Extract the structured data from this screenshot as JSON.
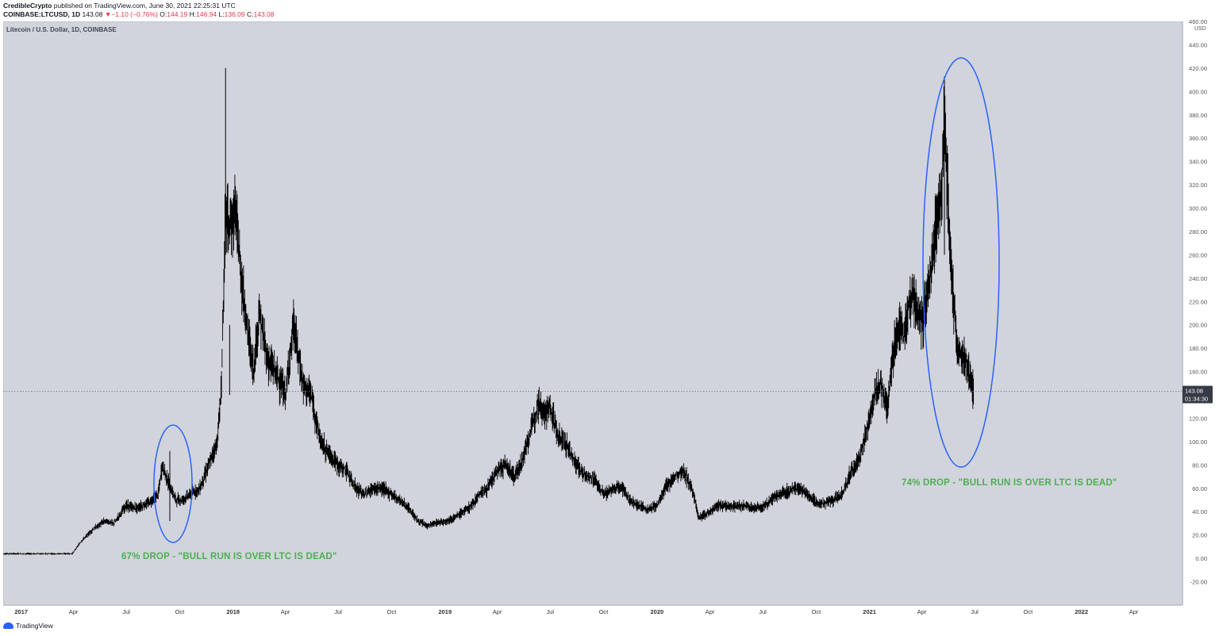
{
  "header": {
    "author": "CredibleCrypto",
    "published": "published on TradingView.com, June 30, 2021 22:25:31 UTC",
    "symbol": "COINBASE:LTCUSD, 1D",
    "last": "143.08",
    "change": "−1.10 (−0.76%)",
    "o_label": "O:",
    "o": "144.19",
    "h_label": "H:",
    "h": "146.94",
    "l_label": "L:",
    "l": "136.09",
    "c_label": "C:",
    "c": "143.08"
  },
  "chart_title": "Litecoin / U.S. Dollar, 1D, COINBASE",
  "axis_unit": "USD",
  "last_price_tag": {
    "price": "143.08",
    "countdown": "01:34:30"
  },
  "footer": {
    "brand": "TradingView"
  },
  "colors": {
    "background": "#d1d4dc",
    "candles": "#000000",
    "ellipse": "#2962ff",
    "annotation": "#4caf50",
    "down": "#e0394a"
  },
  "annotations": [
    {
      "text": "67% DROP - \"BULL RUN IS OVER LTC IS DEAD\""
    },
    {
      "text": "74% DROP - \"BULL RUN IS OVER LTC IS DEAD\""
    }
  ],
  "chart_data": {
    "type": "line",
    "title": "Litecoin / U.S. Dollar, 1D, COINBASE",
    "xlabel": "",
    "ylabel": "USD",
    "ylim": [
      -40,
      460
    ],
    "yticks": [
      "460.00",
      "440.00",
      "420.00",
      "400.00",
      "380.00",
      "360.00",
      "340.00",
      "320.00",
      "300.00",
      "280.00",
      "260.00",
      "240.00",
      "220.00",
      "200.00",
      "180.00",
      "160.00",
      "140.00",
      "120.00",
      "100.00",
      "80.00",
      "60.00",
      "40.00",
      "20.00",
      "0.00",
      "-20.00"
    ],
    "ytick_values": [
      460,
      440,
      420,
      400,
      380,
      360,
      340,
      320,
      300,
      280,
      260,
      240,
      220,
      200,
      180,
      160,
      140,
      120,
      100,
      80,
      60,
      40,
      20,
      0,
      -20
    ],
    "xticks": [
      "2017",
      "Apr",
      "Jul",
      "Oct",
      "2018",
      "Apr",
      "Jul",
      "Oct",
      "2019",
      "Apr",
      "Jul",
      "Oct",
      "2020",
      "Apr",
      "Jul",
      "Oct",
      "2021",
      "Apr",
      "Jul",
      "Oct",
      "2022",
      "Apr"
    ],
    "xtick_dates": [
      "2017-01-01",
      "2017-04-01",
      "2017-07-01",
      "2017-10-01",
      "2018-01-01",
      "2018-04-01",
      "2018-07-01",
      "2018-10-01",
      "2019-01-01",
      "2019-04-01",
      "2019-07-01",
      "2019-10-01",
      "2020-01-01",
      "2020-04-01",
      "2020-07-01",
      "2020-10-01",
      "2021-01-01",
      "2021-04-01",
      "2021-07-01",
      "2021-10-01",
      "2022-01-01",
      "2022-04-01"
    ],
    "xlim": [
      "2016-12-01",
      "2022-06-24"
    ],
    "series": [
      {
        "x": [
          "2016-12-01",
          "2017-01-15",
          "2017-03-01",
          "2017-03-30",
          "2017-04-15",
          "2017-05-05",
          "2017-05-25",
          "2017-06-10",
          "2017-06-30",
          "2017-07-20",
          "2017-08-10",
          "2017-08-25",
          "2017-09-01",
          "2017-09-08",
          "2017-09-15",
          "2017-09-25",
          "2017-10-05",
          "2017-10-20",
          "2017-11-05",
          "2017-11-20",
          "2017-12-05",
          "2017-12-12",
          "2017-12-19",
          "2017-12-26",
          "2018-01-05",
          "2018-01-15",
          "2018-01-25",
          "2018-02-05",
          "2018-02-15",
          "2018-03-01",
          "2018-03-15",
          "2018-04-01",
          "2018-04-15",
          "2018-05-01",
          "2018-05-15",
          "2018-06-01",
          "2018-06-15",
          "2018-07-01",
          "2018-07-15",
          "2018-08-01",
          "2018-08-15",
          "2018-09-01",
          "2018-09-15",
          "2018-10-01",
          "2018-10-15",
          "2018-11-01",
          "2018-11-15",
          "2018-12-01",
          "2018-12-15",
          "2019-01-01",
          "2019-01-15",
          "2019-02-01",
          "2019-02-15",
          "2019-03-01",
          "2019-03-15",
          "2019-04-01",
          "2019-04-15",
          "2019-05-01",
          "2019-05-15",
          "2019-06-01",
          "2019-06-10",
          "2019-06-22",
          "2019-07-01",
          "2019-07-15",
          "2019-08-01",
          "2019-08-15",
          "2019-09-01",
          "2019-09-15",
          "2019-10-01",
          "2019-10-15",
          "2019-11-01",
          "2019-11-15",
          "2019-12-01",
          "2019-12-15",
          "2020-01-01",
          "2020-01-15",
          "2020-02-01",
          "2020-02-15",
          "2020-03-01",
          "2020-03-13",
          "2020-04-01",
          "2020-04-15",
          "2020-05-01",
          "2020-05-15",
          "2020-06-01",
          "2020-06-15",
          "2020-07-01",
          "2020-07-15",
          "2020-08-01",
          "2020-08-15",
          "2020-09-01",
          "2020-09-15",
          "2020-10-01",
          "2020-10-15",
          "2020-11-01",
          "2020-11-15",
          "2020-12-01",
          "2020-12-15",
          "2021-01-01",
          "2021-01-10",
          "2021-01-20",
          "2021-02-01",
          "2021-02-10",
          "2021-02-20",
          "2021-03-01",
          "2021-03-15",
          "2021-04-01",
          "2021-04-15",
          "2021-04-25",
          "2021-05-05",
          "2021-05-10",
          "2021-05-20",
          "2021-06-01",
          "2021-06-15",
          "2021-06-30"
        ],
        "y": [
          4,
          4,
          4,
          4,
          15,
          25,
          32,
          30,
          45,
          43,
          48,
          55,
          80,
          70,
          60,
          50,
          50,
          55,
          60,
          80,
          100,
          150,
          300,
          280,
          300,
          240,
          200,
          160,
          210,
          170,
          160,
          140,
          200,
          150,
          140,
          100,
          90,
          80,
          75,
          60,
          55,
          60,
          60,
          55,
          50,
          42,
          32,
          28,
          30,
          32,
          34,
          40,
          45,
          55,
          60,
          75,
          80,
          70,
          85,
          115,
          135,
          125,
          130,
          105,
          95,
          80,
          70,
          68,
          55,
          58,
          62,
          50,
          45,
          42,
          45,
          60,
          70,
          75,
          60,
          35,
          40,
          45,
          45,
          45,
          45,
          43,
          44,
          50,
          55,
          58,
          60,
          55,
          48,
          47,
          50,
          55,
          75,
          85,
          120,
          140,
          150,
          130,
          175,
          200,
          190,
          230,
          200,
          240,
          280,
          310,
          380,
          260,
          180,
          170,
          143
        ]
      }
    ],
    "annotations": [
      "67% DROP - \"BULL RUN IS OVER LTC IS DEAD\"",
      "74% DROP - \"BULL RUN IS OVER LTC IS DEAD\""
    ],
    "grid": false,
    "legend": "none",
    "last_price_line": 143.08
  }
}
